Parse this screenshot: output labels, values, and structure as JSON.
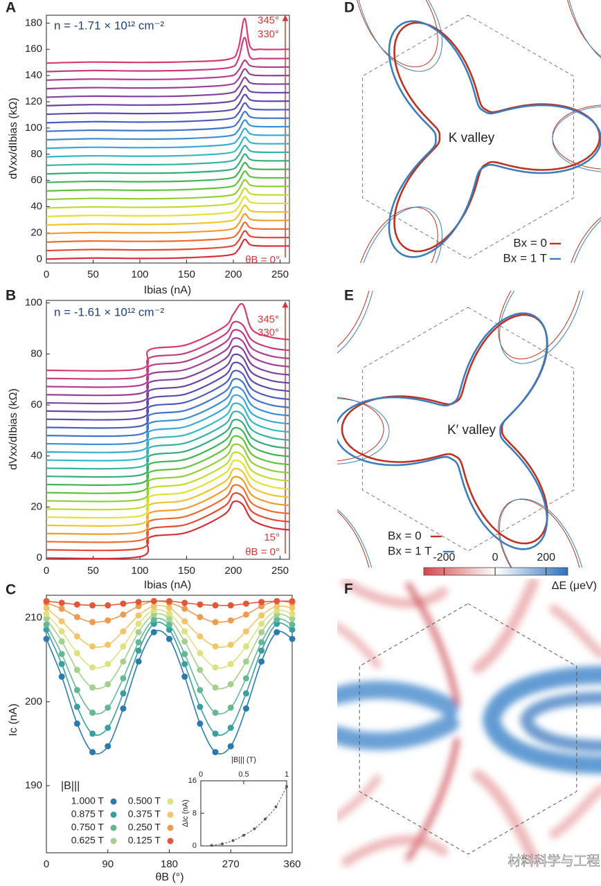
{
  "chart_data": [
    {
      "type": "line",
      "panel": "A",
      "xlabel": "Ibias (nA)",
      "ylabel": "dVxx/dIbias (kΩ)",
      "annotations": [
        "n = -1.71 × 10¹² cm⁻²",
        "345°",
        "330°",
        "θB = 0°"
      ],
      "xlim": [
        0,
        260
      ],
      "ylim": [
        -3,
        186
      ],
      "xticks": [
        0,
        50,
        100,
        150,
        200,
        250
      ],
      "yticks": [
        0,
        20,
        40,
        60,
        80,
        100,
        120,
        140,
        160,
        180
      ],
      "x": [
        0,
        50,
        100,
        150,
        195,
        205,
        212,
        218,
        230,
        260
      ],
      "series": [
        {
          "color": "#d62f3a",
          "values": [
            0,
            0.8,
            0.5,
            1,
            3,
            7,
            15,
            11,
            10,
            10
          ]
        },
        {
          "color": "#e5482f",
          "values": [
            6.5,
            7.3,
            7,
            7.5,
            9.5,
            13.5,
            21.5,
            17.5,
            16.5,
            16.5
          ]
        },
        {
          "color": "#ef6a2c",
          "values": [
            13,
            13.8,
            13.5,
            14,
            16,
            20,
            28,
            24,
            23,
            23
          ]
        },
        {
          "color": "#f39a2a",
          "values": [
            19.5,
            20.3,
            20,
            20.5,
            22.5,
            26.5,
            34.5,
            30.5,
            29.5,
            29.5
          ]
        },
        {
          "color": "#f2c42b",
          "values": [
            26,
            26.8,
            26.5,
            27,
            29,
            33,
            41,
            37,
            36,
            36
          ]
        },
        {
          "color": "#e4e12e",
          "values": [
            32.5,
            33.3,
            33,
            33.5,
            35.5,
            39.5,
            47.5,
            43.5,
            42.5,
            42.5
          ]
        },
        {
          "color": "#bedc2f",
          "values": [
            39,
            39.8,
            39.5,
            40,
            42,
            46,
            54,
            50,
            49,
            49
          ]
        },
        {
          "color": "#8fce35",
          "values": [
            45.5,
            46.3,
            46,
            46.5,
            48.5,
            52.5,
            60.5,
            56.5,
            55.5,
            55.5
          ]
        },
        {
          "color": "#5fc23c",
          "values": [
            52,
            52.8,
            52.5,
            53,
            55,
            59,
            67,
            63,
            62,
            62
          ]
        },
        {
          "color": "#3fb453",
          "values": [
            58.5,
            59.3,
            59,
            59.5,
            61.5,
            65.5,
            73.5,
            69.5,
            68.5,
            68.5
          ]
        },
        {
          "color": "#36ac79",
          "values": [
            65,
            65.8,
            65.5,
            66,
            68,
            72,
            80,
            76,
            75,
            75
          ]
        },
        {
          "color": "#33b2a3",
          "values": [
            71.5,
            72.3,
            72,
            72.5,
            74.5,
            78.5,
            86.5,
            82.5,
            81.5,
            81.5
          ]
        },
        {
          "color": "#33b8c8",
          "values": [
            78,
            78.8,
            78.5,
            79,
            81,
            85,
            93,
            89,
            88,
            88
          ]
        },
        {
          "color": "#35a8d8",
          "values": [
            84.5,
            85.3,
            85,
            85.5,
            87.5,
            91.5,
            99.5,
            95.5,
            94.5,
            94.5
          ]
        },
        {
          "color": "#3a8ed6",
          "values": [
            91,
            91.8,
            91.5,
            92,
            94,
            98,
            106,
            102,
            101,
            101
          ]
        },
        {
          "color": "#3f74cc",
          "values": [
            97.5,
            98.3,
            98,
            98.5,
            100.5,
            104.5,
            112.5,
            108.5,
            107.5,
            107.5
          ]
        },
        {
          "color": "#4a5cbf",
          "values": [
            104,
            104.8,
            104.5,
            105,
            107,
            111,
            119,
            115,
            114,
            114
          ]
        },
        {
          "color": "#5a4bb2",
          "values": [
            110.5,
            111.3,
            111,
            111.5,
            113.5,
            117.5,
            125.5,
            121.5,
            120.5,
            120.5
          ]
        },
        {
          "color": "#6c44a8",
          "values": [
            117,
            117.8,
            117.5,
            118,
            120,
            124,
            132,
            128,
            127,
            127
          ]
        },
        {
          "color": "#83409f",
          "values": [
            123.5,
            124.3,
            124,
            124.5,
            126.5,
            130.5,
            138.5,
            134.5,
            133.5,
            133.5
          ]
        },
        {
          "color": "#9c3e98",
          "values": [
            130,
            130.8,
            130.5,
            131,
            133,
            137,
            145,
            141,
            140,
            140
          ]
        },
        {
          "color": "#b43b8e",
          "values": [
            136.5,
            137.3,
            137,
            137.5,
            139.5,
            143.5,
            151.5,
            147.5,
            146.5,
            146.5
          ]
        },
        {
          "color": "#c93a80",
          "values": [
            143,
            143.8,
            143.5,
            144,
            146,
            152,
            169,
            154,
            153,
            153
          ]
        },
        {
          "color": "#d93a6e",
          "values": [
            149.5,
            150.3,
            150,
            150.5,
            152.5,
            160,
            183.5,
            162,
            160,
            160
          ]
        }
      ]
    },
    {
      "type": "line",
      "panel": "B",
      "xlabel": "Ibias (nA)",
      "ylabel": "dVxx/dIbias (kΩ)",
      "annotations": [
        "n = -1.61 × 10¹² cm⁻²",
        "345°",
        "330°",
        "15°",
        "θB = 0°"
      ],
      "xlim": [
        0,
        260
      ],
      "ylim": [
        -0.5,
        101
      ],
      "xticks": [
        0,
        50,
        100,
        150,
        200,
        250
      ],
      "yticks": [
        0,
        20,
        40,
        60,
        80,
        100
      ],
      "x": [
        0,
        100,
        110,
        150,
        190,
        200,
        210,
        220,
        240,
        260
      ],
      "series": [
        {
          "color": "#d62f3a",
          "values": [
            0,
            0.5,
            8,
            10,
            17,
            22,
            21,
            15,
            12,
            11
          ]
        },
        {
          "color": "#e5482f",
          "values": [
            3.2,
            3.7,
            11.2,
            13.2,
            20.2,
            25.2,
            24.2,
            18.2,
            15.2,
            14.2
          ]
        },
        {
          "color": "#ef6a2c",
          "values": [
            6.4,
            6.9,
            14.4,
            16.4,
            23.4,
            28.4,
            27.4,
            21.4,
            18.4,
            17.4
          ]
        },
        {
          "color": "#f39a2a",
          "values": [
            9.6,
            10.1,
            17.6,
            19.6,
            26.6,
            31.6,
            30.6,
            24.6,
            21.6,
            20.6
          ]
        },
        {
          "color": "#f2c42b",
          "values": [
            12.8,
            13.3,
            20.8,
            22.8,
            29.8,
            34.8,
            33.8,
            27.8,
            24.8,
            23.8
          ]
        },
        {
          "color": "#e4e12e",
          "values": [
            16,
            16.5,
            24,
            26,
            33,
            38,
            37,
            31,
            28,
            27
          ]
        },
        {
          "color": "#bedc2f",
          "values": [
            19.2,
            19.7,
            27.2,
            29.2,
            36.2,
            41.2,
            40.2,
            34.2,
            31.2,
            30.2
          ]
        },
        {
          "color": "#8fce35",
          "values": [
            22.4,
            22.9,
            30.4,
            32.4,
            39.4,
            44.4,
            43.4,
            37.4,
            34.4,
            33.4
          ]
        },
        {
          "color": "#5fc23c",
          "values": [
            25.6,
            26.1,
            33.6,
            35.6,
            42.6,
            47.6,
            46.6,
            40.6,
            37.6,
            36.6
          ]
        },
        {
          "color": "#3fb453",
          "values": [
            28.8,
            29.3,
            36.8,
            38.8,
            45.8,
            50.8,
            49.8,
            43.8,
            40.8,
            39.8
          ]
        },
        {
          "color": "#36ac79",
          "values": [
            32,
            32.5,
            40,
            42,
            49,
            54,
            53,
            47,
            44,
            43
          ]
        },
        {
          "color": "#33b2a3",
          "values": [
            35.2,
            35.7,
            43.2,
            45.2,
            52.2,
            57.2,
            56.2,
            50.2,
            47.2,
            46.2
          ]
        },
        {
          "color": "#33b8c8",
          "values": [
            38.4,
            38.9,
            46.4,
            48.4,
            55.4,
            60.4,
            59.4,
            53.4,
            50.4,
            49.4
          ]
        },
        {
          "color": "#35a8d8",
          "values": [
            41.6,
            42.1,
            49.6,
            51.6,
            58.6,
            63.6,
            62.6,
            56.6,
            53.6,
            52.6
          ]
        },
        {
          "color": "#3a8ed6",
          "values": [
            44.8,
            45.3,
            52.8,
            54.8,
            61.8,
            66.8,
            65.8,
            59.8,
            56.8,
            55.8
          ]
        },
        {
          "color": "#3f74cc",
          "values": [
            48,
            48.5,
            56,
            58,
            65,
            70,
            69,
            63,
            60,
            59
          ]
        },
        {
          "color": "#4a5cbf",
          "values": [
            51.2,
            51.7,
            59.2,
            61.2,
            68.2,
            73.2,
            72.2,
            66.2,
            63.2,
            62.2
          ]
        },
        {
          "color": "#5a4bb2",
          "values": [
            54.4,
            54.9,
            62.4,
            64.4,
            71.4,
            76.4,
            75.4,
            69.4,
            66.4,
            65.4
          ]
        },
        {
          "color": "#6c44a8",
          "values": [
            57.6,
            58.1,
            65.6,
            67.6,
            74.6,
            79.6,
            78.6,
            72.6,
            69.6,
            68.6
          ]
        },
        {
          "color": "#83409f",
          "values": [
            60.8,
            61.3,
            68.8,
            70.8,
            77.8,
            82.8,
            81.8,
            75.8,
            72.8,
            71.8
          ]
        },
        {
          "color": "#9c3e98",
          "values": [
            64,
            64.5,
            72,
            74,
            81,
            86,
            85,
            79,
            76,
            75
          ]
        },
        {
          "color": "#b43b8e",
          "values": [
            67.2,
            67.7,
            75.2,
            77.2,
            84.2,
            89.2,
            88.2,
            82.2,
            79.2,
            78.2
          ]
        },
        {
          "color": "#c93a80",
          "values": [
            70.4,
            70.9,
            78.4,
            80.4,
            87.4,
            92.4,
            91.4,
            85.4,
            82.4,
            81.4
          ]
        },
        {
          "color": "#d93a6e",
          "values": [
            73.6,
            74.1,
            81.6,
            83.6,
            90.6,
            95.6,
            99.5,
            89.6,
            86.6,
            85.6
          ]
        }
      ]
    },
    {
      "type": "scatter",
      "fit": true,
      "panel": "C",
      "xlabel": "θB (°)",
      "ylabel": "Ic (nA)",
      "legend_title": "|B||| ",
      "xlim": [
        0,
        360
      ],
      "ylim": [
        182,
        212.7
      ],
      "xticks": [
        0,
        90,
        180,
        270,
        360
      ],
      "yticks": [
        190,
        200,
        210
      ],
      "x": [
        0,
        22.5,
        45,
        67.5,
        90,
        112.5,
        135,
        157.5,
        180,
        202.5,
        225,
        247.5,
        270,
        292.5,
        315,
        337.5,
        360
      ],
      "series": [
        {
          "name": "1.000 T",
          "color": "#2a7ab0",
          "values": [
            207.5,
            203.0,
            197.4,
            194.0,
            194.7,
            199.2,
            204.8,
            208.3,
            207.5,
            203.0,
            197.4,
            194.0,
            194.7,
            199.2,
            204.8,
            208.3,
            207.5
          ]
        },
        {
          "name": "0.875 T",
          "color": "#3a9ea0",
          "values": [
            208.6,
            204.5,
            199.4,
            196.2,
            196.9,
            201.0,
            206.1,
            209.3,
            208.6,
            204.5,
            199.4,
            196.2,
            196.9,
            201.0,
            206.1,
            209.3,
            208.6
          ]
        },
        {
          "name": "0.750 T",
          "color": "#62b894",
          "values": [
            209.2,
            205.7,
            201.4,
            198.7,
            199.3,
            202.8,
            207.1,
            209.8,
            209.2,
            205.7,
            201.4,
            198.7,
            199.3,
            202.8,
            207.1,
            209.8,
            209.2
          ]
        },
        {
          "name": "0.625 T",
          "color": "#a3d08c",
          "values": [
            209.9,
            207.2,
            203.8,
            201.7,
            202.1,
            204.8,
            208.3,
            210.4,
            209.9,
            207.2,
            203.8,
            201.7,
            202.1,
            204.8,
            208.3,
            210.4,
            209.9
          ]
        },
        {
          "name": "0.500 T",
          "color": "#dde27c",
          "values": [
            210.5,
            208.4,
            205.8,
            204.1,
            204.5,
            206.6,
            209.3,
            210.9,
            210.5,
            208.4,
            205.8,
            204.1,
            204.5,
            206.6,
            209.3,
            210.9,
            210.5
          ]
        },
        {
          "name": "0.375 T",
          "color": "#f4c46a",
          "values": [
            211.2,
            209.6,
            207.8,
            206.6,
            206.8,
            208.4,
            210.3,
            211.4,
            211.2,
            209.6,
            207.8,
            206.6,
            206.8,
            208.4,
            210.3,
            211.4,
            211.2
          ]
        },
        {
          "name": "0.250 T",
          "color": "#ef9a4e",
          "values": [
            211.8,
            211.1,
            210.1,
            209.5,
            209.7,
            210.4,
            211.4,
            212.0,
            211.8,
            211.1,
            210.1,
            209.5,
            209.7,
            210.4,
            211.4,
            212.0,
            211.8
          ]
        },
        {
          "name": "0.125 T",
          "color": "#e0573a",
          "values": [
            212.0,
            211.8,
            211.6,
            211.5,
            211.5,
            211.7,
            211.9,
            212.0,
            212.0,
            211.8,
            211.6,
            211.5,
            211.5,
            211.7,
            211.9,
            212.0,
            212.0
          ]
        }
      ]
    },
    {
      "type": "scatter",
      "fit": true,
      "xlabel": "|B||| (T)",
      "ylabel": "ΔIc (nA)",
      "xlim": [
        0,
        1
      ],
      "ylim": [
        0,
        16
      ],
      "xticks": [
        0,
        0.5,
        1
      ],
      "yticks": [
        0,
        8,
        16
      ],
      "x": [
        0.125,
        0.25,
        0.375,
        0.5,
        0.625,
        0.75,
        0.875,
        1
      ],
      "series": [
        {
          "color": "#555555",
          "values": [
            0.1,
            0.5,
            1.3,
            2.6,
            4.2,
            6.6,
            9.6,
            14.6
          ]
        }
      ]
    }
  ],
  "diagrams": [
    {
      "panel": "D",
      "label": "K valley",
      "legend": [
        "Bx = 0",
        "Bx = 1 T"
      ]
    },
    {
      "panel": "E",
      "label": "K′ valley",
      "legend": [
        "Bx = 0",
        "Bx = 1 T"
      ]
    }
  ],
  "heatmap": {
    "panel": "F",
    "colorbar": {
      "lim": [
        -280,
        285
      ],
      "ticks": [
        -200,
        0,
        200
      ],
      "label": "ΔE (μeV)"
    }
  },
  "watermark": "材料科学与工程"
}
